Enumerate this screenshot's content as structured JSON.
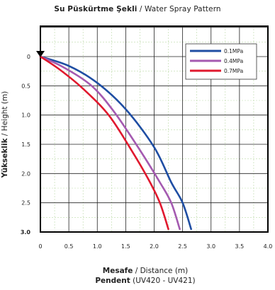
{
  "chart_data": {
    "type": "line",
    "title_bold": "Su Püskürtme Şekli",
    "title_rest": "/ Water Spray Pattern",
    "xlabel_bold": "Mesafe",
    "xlabel_rest": "/ Distance (m)",
    "ylabel_bold": "Yükseklik",
    "ylabel_rest": "/ Height (m)",
    "subtitle_bold": "Pendent",
    "subtitle_rest": "(UV420 - UV421)",
    "xlim": [
      0,
      4.0
    ],
    "ylim": [
      0,
      3.0
    ],
    "y_inverted": true,
    "xticks": [
      "0",
      "0.5",
      "1.0",
      "1.5",
      "2.0",
      "2.5",
      "3.0",
      "3.5",
      "4.0"
    ],
    "yticks": [
      "0",
      "0.5",
      "1.0",
      "1.5",
      "2.0",
      "2.5",
      "3.0"
    ],
    "grid": true,
    "legend_position": "top-right",
    "series": [
      {
        "name": "0.1MPa",
        "color": "#1f4ea3",
        "points": [
          [
            0,
            0
          ],
          [
            0.5,
            0.16
          ],
          [
            1.0,
            0.45
          ],
          [
            1.5,
            0.9
          ],
          [
            2.0,
            1.55
          ],
          [
            2.3,
            2.15
          ],
          [
            2.5,
            2.5
          ],
          [
            2.65,
            2.95
          ]
        ]
      },
      {
        "name": "0.4MPa",
        "color": "#a45ab0",
        "points": [
          [
            0,
            0
          ],
          [
            0.4,
            0.18
          ],
          [
            0.9,
            0.5
          ],
          [
            1.3,
            0.95
          ],
          [
            1.75,
            1.6
          ],
          [
            2.1,
            2.15
          ],
          [
            2.3,
            2.5
          ],
          [
            2.45,
            2.95
          ]
        ]
      },
      {
        "name": "0.7MPa",
        "color": "#e0192e",
        "points": [
          [
            0,
            0
          ],
          [
            0.35,
            0.23
          ],
          [
            0.75,
            0.55
          ],
          [
            1.2,
            1.0
          ],
          [
            1.6,
            1.6
          ],
          [
            1.9,
            2.1
          ],
          [
            2.1,
            2.5
          ],
          [
            2.25,
            2.95
          ]
        ]
      }
    ]
  }
}
